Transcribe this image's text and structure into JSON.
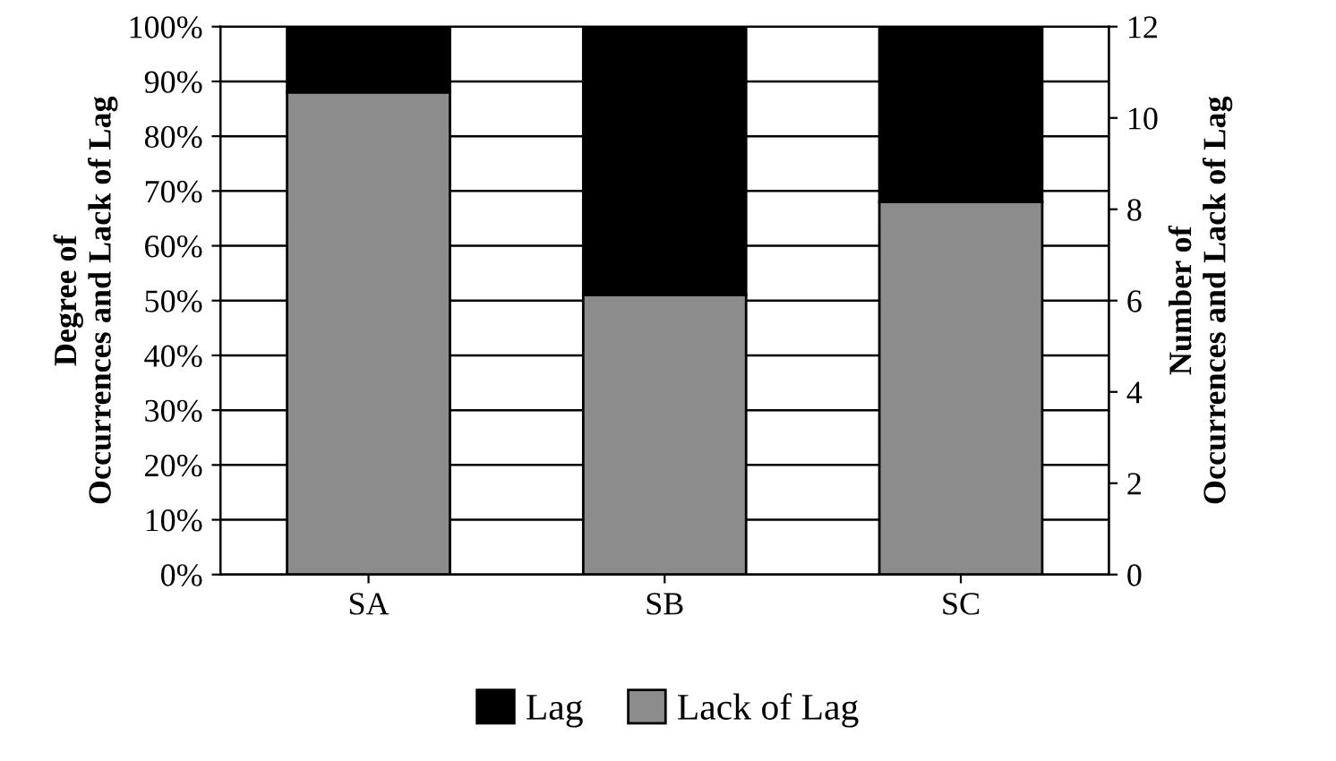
{
  "chart_data": {
    "type": "bar",
    "stacked": true,
    "categories": [
      "SA",
      "SB",
      "SC"
    ],
    "series": [
      {
        "name": "Lack of Lag",
        "color": "#8c8c8c",
        "values": [
          88,
          51,
          68
        ]
      },
      {
        "name": "Lag",
        "color": "#000000",
        "values": [
          12,
          49,
          32
        ]
      }
    ],
    "ylabel": "Degree of\nOccurrences and Lack of Lag",
    "y2label": "Number of\nOccurrences and Lack of Lag",
    "ylim": [
      0,
      100
    ],
    "yticks": [
      {
        "value": 0,
        "label": "0%"
      },
      {
        "value": 10,
        "label": "10%"
      },
      {
        "value": 20,
        "label": "20%"
      },
      {
        "value": 30,
        "label": "30%"
      },
      {
        "value": 40,
        "label": "40%"
      },
      {
        "value": 50,
        "label": "50%"
      },
      {
        "value": 60,
        "label": "60%"
      },
      {
        "value": 70,
        "label": "70%"
      },
      {
        "value": 80,
        "label": "80%"
      },
      {
        "value": 90,
        "label": "90%"
      },
      {
        "value": 100,
        "label": "100%"
      }
    ],
    "y2lim": [
      0,
      12
    ],
    "y2ticks": [
      0,
      2,
      4,
      6,
      8,
      10,
      12
    ],
    "grid": "y",
    "legend": "bottom"
  }
}
